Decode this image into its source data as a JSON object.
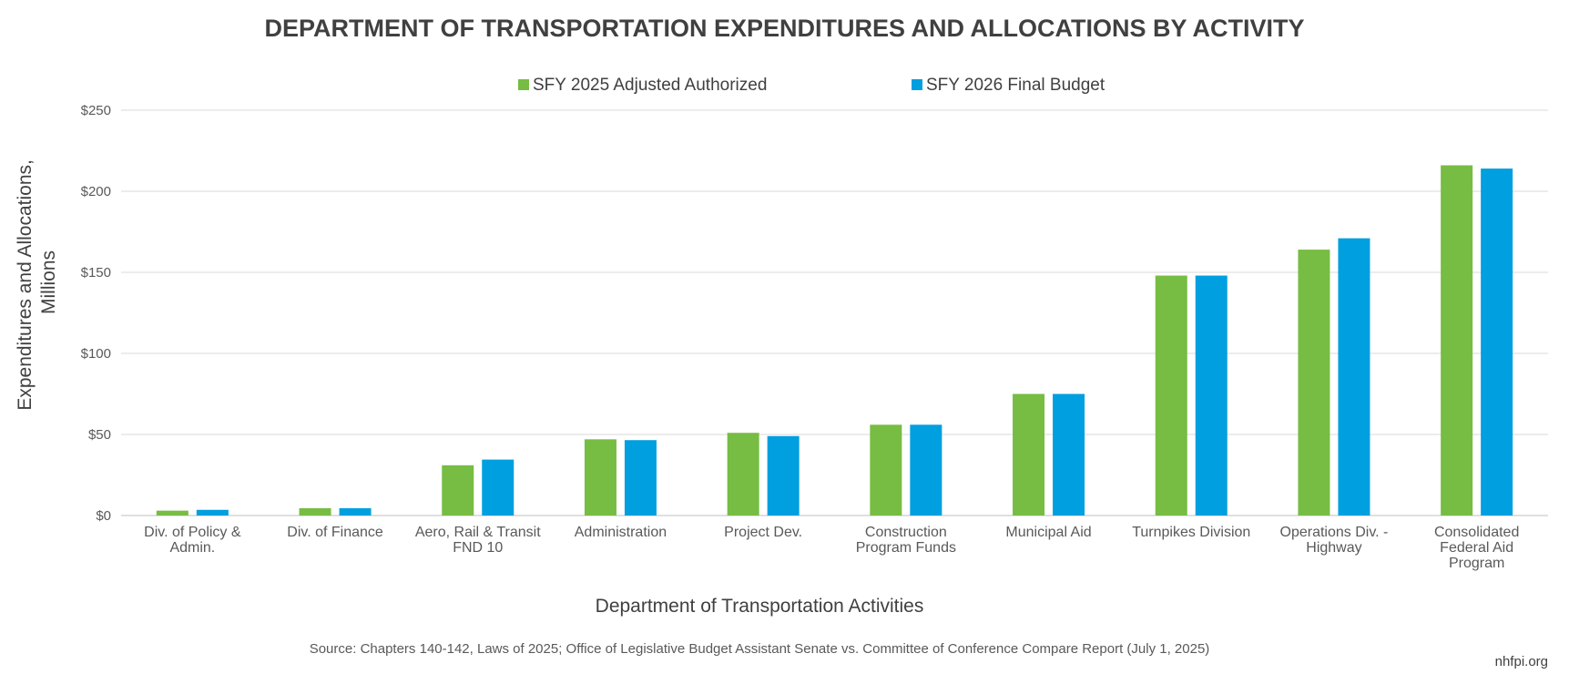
{
  "chart_data": {
    "type": "bar",
    "title": "DEPARTMENT OF TRANSPORTATION EXPENDITURES AND ALLOCATIONS BY ACTIVITY",
    "xlabel": "Department of Transportation Activities",
    "ylabel_lines": [
      "Expenditures and Allocations,",
      "Millions"
    ],
    "ylim": [
      0,
      250
    ],
    "y_ticks": [
      0,
      50,
      100,
      150,
      200,
      250
    ],
    "y_tick_labels": [
      "$0",
      "$50",
      "$100",
      "$150",
      "$200",
      "$250"
    ],
    "grid": true,
    "legend_position": "top-center",
    "categories": [
      [
        "Div. of Policy &",
        "Admin."
      ],
      [
        "Div. of Finance"
      ],
      [
        "Aero, Rail & Transit",
        "FND 10"
      ],
      [
        "Administration"
      ],
      [
        "Project Dev."
      ],
      [
        "Construction",
        "Program Funds"
      ],
      [
        "Municipal Aid"
      ],
      [
        "Turnpikes Division"
      ],
      [
        "Operations Div. -",
        "Highway"
      ],
      [
        "Consolidated",
        "Federal Aid",
        "Program"
      ]
    ],
    "series": [
      {
        "name": "SFY 2025 Adjusted Authorized",
        "color": "#77BC43",
        "values": [
          3,
          4.5,
          31,
          47,
          51,
          56,
          75,
          148,
          164,
          216
        ]
      },
      {
        "name": "SFY 2026 Final Budget",
        "color": "#009FDF",
        "values": [
          3.5,
          4.5,
          34.5,
          46.5,
          49,
          56,
          75,
          148,
          171,
          214
        ]
      }
    ]
  },
  "footer": {
    "source": "Source: Chapters 140-142, Laws of 2025; Office of Legislative Budget Assistant Senate vs. Committee of Conference Compare Report (July 1, 2025)",
    "brand": "nhfpi.org"
  }
}
